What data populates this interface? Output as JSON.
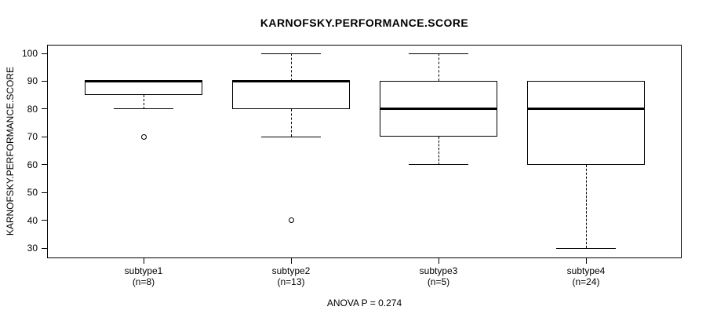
{
  "figure": {
    "title": "KARNOFSKY.PERFORMANCE.SCORE",
    "y_axis_title": "KARNOFSKY.PERFORMANCE.SCORE",
    "footer": "ANOVA P = 0.274"
  },
  "chart_data": {
    "type": "boxplot",
    "title": "KARNOFSKY.PERFORMANCE.SCORE",
    "xlabel": "",
    "ylabel": "KARNOFSKY.PERFORMANCE.SCORE",
    "annotation": "ANOVA P = 0.274",
    "ylim": [
      26,
      104
    ],
    "yticks": [
      100,
      90,
      80,
      70,
      60,
      50,
      40,
      30
    ],
    "grid": false,
    "legend": "none",
    "groups": [
      {
        "label": "subtype1",
        "count_label": "(n=8)",
        "n": 8,
        "whisker_low": 80,
        "q1": 85,
        "median": 90,
        "q3": 90,
        "whisker_high": 90,
        "outliers": [
          70
        ]
      },
      {
        "label": "subtype2",
        "count_label": "(n=13)",
        "n": 13,
        "whisker_low": 70,
        "q1": 80,
        "median": 90,
        "q3": 90,
        "whisker_high": 100,
        "outliers": [
          40
        ]
      },
      {
        "label": "subtype3",
        "count_label": "(n=5)",
        "n": 5,
        "whisker_low": 60,
        "q1": 70,
        "median": 80,
        "q3": 90,
        "whisker_high": 100,
        "outliers": []
      },
      {
        "label": "subtype4",
        "count_label": "(n=24)",
        "n": 24,
        "whisker_low": 30,
        "q1": 60,
        "median": 80,
        "q3": 90,
        "whisker_high": 90,
        "outliers": []
      }
    ],
    "colors": {
      "box_border": "#000000",
      "median_line": "#000000",
      "background": "#ffffff",
      "text": "#000000"
    }
  }
}
